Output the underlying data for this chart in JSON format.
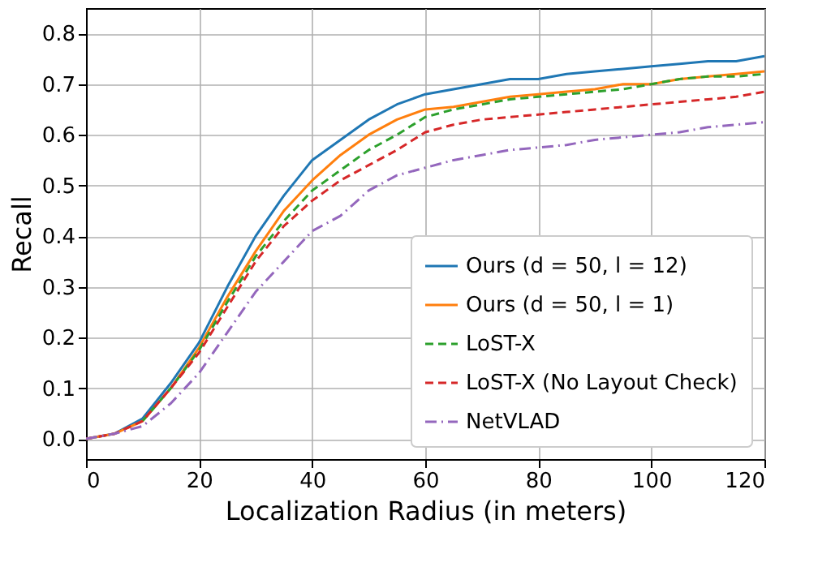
{
  "chart_data": {
    "type": "line",
    "xlabel": "Localization Radius (in meters)",
    "ylabel": "Recall",
    "x": [
      0,
      5,
      10,
      15,
      20,
      25,
      30,
      35,
      40,
      45,
      50,
      55,
      60,
      65,
      70,
      75,
      80,
      85,
      90,
      95,
      100,
      105,
      110,
      115,
      120
    ],
    "series": [
      {
        "name": "Ours (d = 50, l = 12)",
        "color": "#1f77b4",
        "line_style": "solid",
        "values": [
          0,
          0.01,
          0.04,
          0.11,
          0.19,
          0.3,
          0.4,
          0.48,
          0.55,
          0.59,
          0.63,
          0.66,
          0.68,
          0.69,
          0.7,
          0.71,
          0.71,
          0.72,
          0.725,
          0.73,
          0.735,
          0.74,
          0.745,
          0.745,
          0.755
        ]
      },
      {
        "name": "Ours (d = 50, l = 1)",
        "color": "#ff7f0e",
        "line_style": "solid",
        "values": [
          0,
          0.01,
          0.035,
          0.1,
          0.18,
          0.28,
          0.37,
          0.45,
          0.51,
          0.56,
          0.6,
          0.63,
          0.65,
          0.655,
          0.665,
          0.675,
          0.68,
          0.685,
          0.69,
          0.7,
          0.7,
          0.71,
          0.715,
          0.72,
          0.725
        ]
      },
      {
        "name": "LoST-X",
        "color": "#2ca02c",
        "line_style": "dashed",
        "values": [
          null,
          null,
          0.035,
          0.1,
          0.175,
          0.27,
          0.36,
          0.43,
          0.49,
          0.53,
          0.57,
          0.6,
          0.635,
          0.65,
          0.66,
          0.67,
          0.675,
          0.68,
          0.685,
          0.69,
          0.7,
          0.71,
          0.715,
          0.715,
          0.72
        ]
      },
      {
        "name": "LoST-X (No Layout Check)",
        "color": "#d62728",
        "line_style": "dashed",
        "values": [
          0,
          0.01,
          0.035,
          0.1,
          0.17,
          0.26,
          0.35,
          0.42,
          0.47,
          0.51,
          0.54,
          0.57,
          0.605,
          0.62,
          0.63,
          0.635,
          0.64,
          0.645,
          0.65,
          0.655,
          0.66,
          0.665,
          0.67,
          0.675,
          0.685
        ]
      },
      {
        "name": "NetVLAD",
        "color": "#9467bd",
        "line_style": "dashdot",
        "values": [
          0,
          0.01,
          0.025,
          0.07,
          0.13,
          0.21,
          0.29,
          0.35,
          0.41,
          0.44,
          0.49,
          0.52,
          0.535,
          0.55,
          0.56,
          0.57,
          0.575,
          0.58,
          0.59,
          0.595,
          0.6,
          0.605,
          0.615,
          0.62,
          0.625
        ]
      }
    ],
    "xlim": [
      0,
      120
    ],
    "xticks": [
      0,
      20,
      40,
      60,
      80,
      100,
      120
    ],
    "ylim": [
      -0.04,
      0.85
    ],
    "yticks": [
      {
        "value": 0,
        "label": "0.0"
      },
      0.1,
      0.2,
      0.3,
      0.4,
      0.5,
      0.6,
      0.7,
      0.8
    ],
    "grid": true,
    "legend": "bottom right"
  }
}
